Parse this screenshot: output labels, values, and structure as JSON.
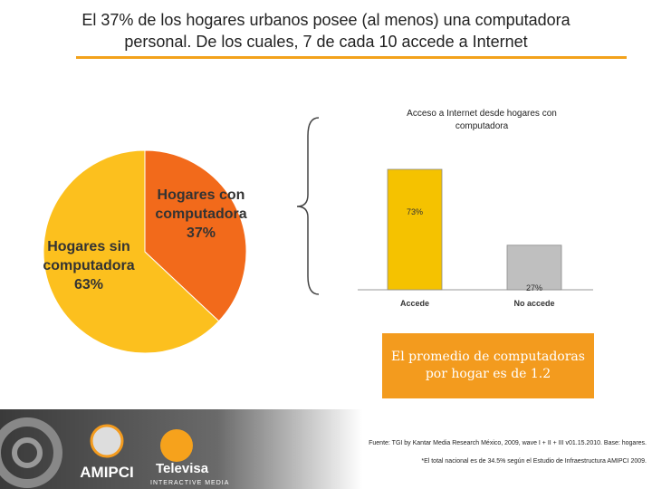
{
  "header": {
    "title": "El 37% de los hogares urbanos posee (al menos) una computadora personal. De los cuales, 7 de cada 10 accede a Internet"
  },
  "chart_data": [
    {
      "type": "pie",
      "categories": [
        "Hogares con computadora",
        "Hogares sin computadora"
      ],
      "values": [
        37,
        63
      ],
      "value_labels": [
        "37%",
        "63%"
      ],
      "colors": [
        "#f26a1b",
        "#fcc01e"
      ]
    },
    {
      "type": "bar",
      "title": "Acceso a Internet desde hogares con computadora",
      "categories": [
        "Accede",
        "No accede"
      ],
      "values": [
        73,
        27
      ],
      "value_labels": [
        "73%",
        "27%"
      ],
      "colors": [
        "#f5c200",
        "#bfbfbf"
      ]
    }
  ],
  "callout": {
    "text": "El promedio de computadoras por hogar es de 1.2"
  },
  "footnotes": [
    "Fuente: TGI by Kantar Media Research México, 2009, wave I + II + III v01.15.2010. Base: hogares.",
    "*El total nacional es de 34.5% según el Estudio de Infraestructura AMIPCI 2009."
  ],
  "logos": {
    "amipci": "AMIPCI",
    "televisa": "Televisa",
    "televisa_sub": "INTERACTIVE MEDIA"
  }
}
